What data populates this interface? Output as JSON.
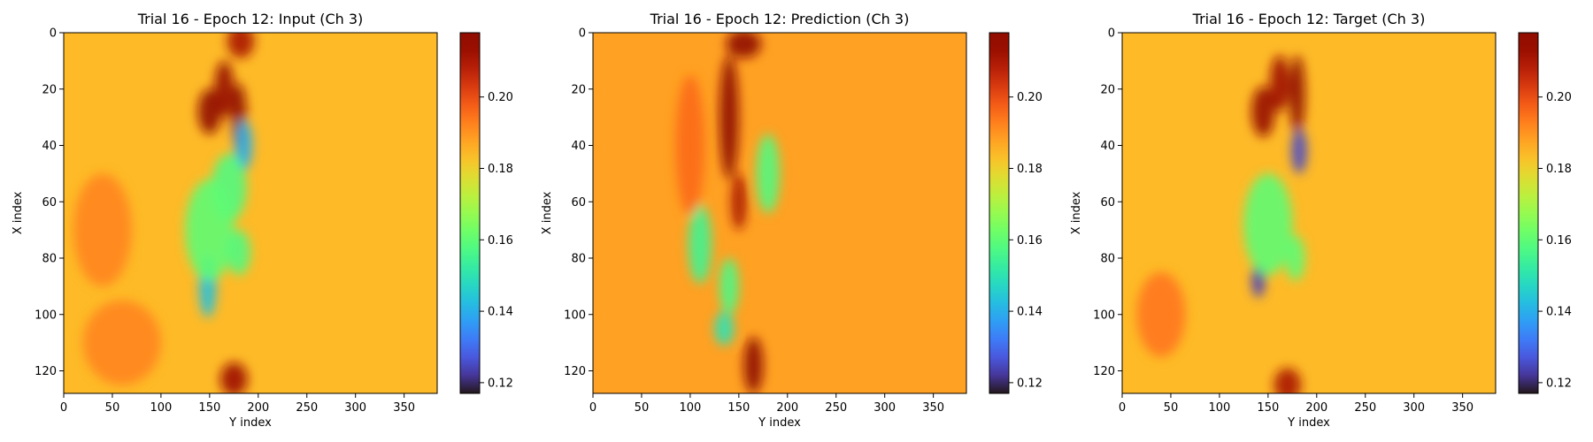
{
  "chart_data": [
    {
      "type": "heatmap",
      "title": "Trial 16 - Epoch 12: Input (Ch 3)",
      "xlabel": "Y index",
      "ylabel": "X index",
      "xlim": [
        0,
        384
      ],
      "ylim": [
        128,
        0
      ],
      "xticks": [
        "0",
        "50",
        "100",
        "150",
        "200",
        "250",
        "300",
        "350"
      ],
      "yticks": [
        "0",
        "20",
        "40",
        "60",
        "80",
        "100",
        "120"
      ],
      "colorbar": {
        "min": 0.117,
        "max": 0.218,
        "ticks": [
          "0.12",
          "0.14",
          "0.16",
          "0.18",
          "0.20"
        ],
        "colormap": "turbo"
      },
      "background_value": 0.184,
      "features": [
        {
          "x": 150,
          "y": 28,
          "value": 0.216,
          "extent_x": 12,
          "extent_y": 8
        },
        {
          "x": 165,
          "y": 20,
          "value": 0.214,
          "extent_x": 10,
          "extent_y": 10
        },
        {
          "x": 180,
          "y": 30,
          "value": 0.216,
          "extent_x": 8,
          "extent_y": 12
        },
        {
          "x": 182,
          "y": 3,
          "value": 0.21,
          "extent_x": 14,
          "extent_y": 6
        },
        {
          "x": 185,
          "y": 40,
          "value": 0.14,
          "extent_x": 9,
          "extent_y": 9
        },
        {
          "x": 170,
          "y": 55,
          "value": 0.158,
          "extent_x": 18,
          "extent_y": 12
        },
        {
          "x": 148,
          "y": 90,
          "value": 0.143,
          "extent_x": 9,
          "extent_y": 11
        },
        {
          "x": 150,
          "y": 70,
          "value": 0.16,
          "extent_x": 25,
          "extent_y": 18
        },
        {
          "x": 180,
          "y": 78,
          "value": 0.158,
          "extent_x": 12,
          "extent_y": 8
        },
        {
          "x": 175,
          "y": 123,
          "value": 0.212,
          "extent_x": 14,
          "extent_y": 6
        },
        {
          "x": 40,
          "y": 70,
          "value": 0.192,
          "extent_x": 30,
          "extent_y": 20
        },
        {
          "x": 60,
          "y": 110,
          "value": 0.192,
          "extent_x": 40,
          "extent_y": 15
        }
      ]
    },
    {
      "type": "heatmap",
      "title": "Trial 16 - Epoch 12: Prediction (Ch 3)",
      "xlabel": "Y index",
      "ylabel": "X index",
      "xlim": [
        0,
        384
      ],
      "ylim": [
        128,
        0
      ],
      "xticks": [
        "0",
        "50",
        "100",
        "150",
        "200",
        "250",
        "300",
        "350"
      ],
      "yticks": [
        "0",
        "20",
        "40",
        "60",
        "80",
        "100",
        "120"
      ],
      "colorbar": {
        "min": 0.117,
        "max": 0.218,
        "ticks": [
          "0.12",
          "0.14",
          "0.16",
          "0.18",
          "0.20"
        ],
        "colormap": "turbo"
      },
      "background_value": 0.188,
      "features": [
        {
          "x": 140,
          "y": 30,
          "value": 0.218,
          "extent_x": 10,
          "extent_y": 22
        },
        {
          "x": 155,
          "y": 4,
          "value": 0.216,
          "extent_x": 18,
          "extent_y": 5
        },
        {
          "x": 180,
          "y": 50,
          "value": 0.158,
          "extent_x": 12,
          "extent_y": 14
        },
        {
          "x": 110,
          "y": 75,
          "value": 0.155,
          "extent_x": 12,
          "extent_y": 14
        },
        {
          "x": 140,
          "y": 90,
          "value": 0.157,
          "extent_x": 10,
          "extent_y": 10
        },
        {
          "x": 135,
          "y": 105,
          "value": 0.15,
          "extent_x": 10,
          "extent_y": 6
        },
        {
          "x": 165,
          "y": 118,
          "value": 0.218,
          "extent_x": 10,
          "extent_y": 10
        },
        {
          "x": 150,
          "y": 60,
          "value": 0.21,
          "extent_x": 8,
          "extent_y": 10
        },
        {
          "x": 100,
          "y": 40,
          "value": 0.196,
          "extent_x": 15,
          "extent_y": 25
        }
      ]
    },
    {
      "type": "heatmap",
      "title": "Trial 16 - Epoch 12: Target (Ch 3)",
      "xlabel": "Y index",
      "ylabel": "X index",
      "xlim": [
        0,
        384
      ],
      "ylim": [
        128,
        0
      ],
      "xticks": [
        "0",
        "50",
        "100",
        "150",
        "200",
        "250",
        "300",
        "350"
      ],
      "yticks": [
        "0",
        "20",
        "40",
        "60",
        "80",
        "100",
        "120"
      ],
      "colorbar": {
        "min": 0.117,
        "max": 0.218,
        "ticks": [
          "0.12",
          "0.14",
          "0.16",
          "0.18",
          "0.20"
        ],
        "colormap": "turbo"
      },
      "background_value": 0.184,
      "features": [
        {
          "x": 145,
          "y": 28,
          "value": 0.214,
          "extent_x": 12,
          "extent_y": 9
        },
        {
          "x": 162,
          "y": 18,
          "value": 0.212,
          "extent_x": 10,
          "extent_y": 10
        },
        {
          "x": 180,
          "y": 22,
          "value": 0.216,
          "extent_x": 8,
          "extent_y": 14
        },
        {
          "x": 182,
          "y": 42,
          "value": 0.125,
          "extent_x": 8,
          "extent_y": 8
        },
        {
          "x": 140,
          "y": 88,
          "value": 0.124,
          "extent_x": 7,
          "extent_y": 6
        },
        {
          "x": 150,
          "y": 68,
          "value": 0.16,
          "extent_x": 25,
          "extent_y": 18
        },
        {
          "x": 178,
          "y": 80,
          "value": 0.16,
          "extent_x": 10,
          "extent_y": 8
        },
        {
          "x": 170,
          "y": 125,
          "value": 0.21,
          "extent_x": 14,
          "extent_y": 6
        },
        {
          "x": 40,
          "y": 100,
          "value": 0.194,
          "extent_x": 25,
          "extent_y": 15
        }
      ]
    }
  ]
}
